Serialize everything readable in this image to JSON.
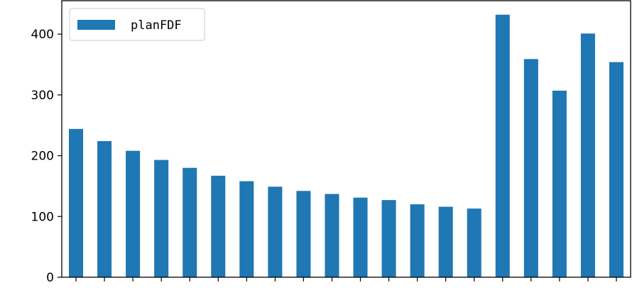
{
  "chart_data": {
    "type": "bar",
    "title": "",
    "xlabel": "",
    "ylabel": "",
    "categories": [
      "",
      "",
      "",
      "",
      "",
      "",
      "",
      "",
      "",
      "",
      "",
      "",
      "",
      "",
      "",
      "",
      "",
      "",
      "",
      ""
    ],
    "series": [
      {
        "name": "planFDF",
        "color": "#1f77b4",
        "values": [
          244,
          224,
          208,
          193,
          180,
          167,
          158,
          149,
          142,
          137,
          131,
          127,
          120,
          116,
          113,
          432,
          359,
          307,
          401,
          354
        ]
      }
    ],
    "ylim": [
      0,
      455
    ],
    "yticks": [
      0,
      100,
      200,
      300,
      400
    ],
    "ytick_labels": [
      "0",
      "100",
      "200",
      "300",
      "400"
    ],
    "grid": false,
    "legend": "upper-left"
  }
}
